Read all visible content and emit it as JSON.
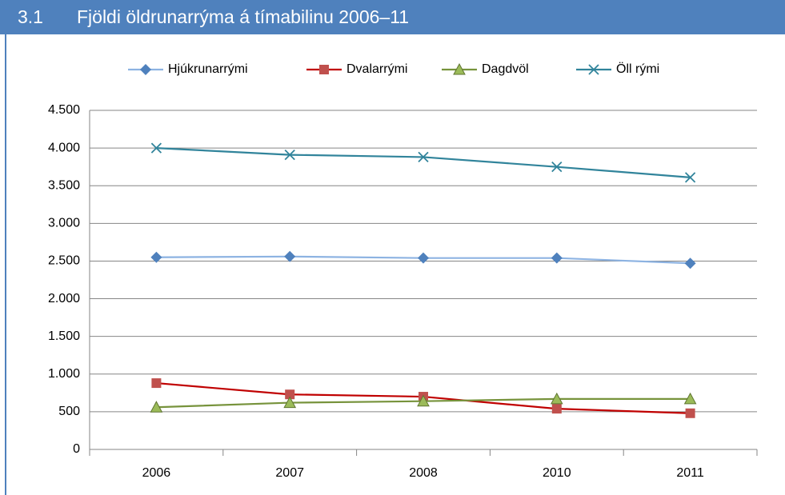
{
  "chart_data": {
    "type": "line",
    "number": "3.1",
    "title": "Fjöldi öldrunarrýma á tímabilinu 2006–11",
    "categories": [
      "2006",
      "2007",
      "2008",
      "2010",
      "2011"
    ],
    "series": [
      {
        "name": "Hjúkrunarrými",
        "color": "#4f81bd",
        "line_color": "#8db3e2",
        "marker": "diamond",
        "values": [
          2550,
          2560,
          2540,
          2540,
          2470
        ]
      },
      {
        "name": "Dvalarrými",
        "color": "#c0504d",
        "line_color": "#c00000",
        "marker": "square",
        "values": [
          880,
          730,
          700,
          540,
          480
        ]
      },
      {
        "name": "Dagdvöl",
        "color": "#9bbb59",
        "line_color": "#77933c",
        "marker": "triangle",
        "values": [
          560,
          620,
          640,
          670,
          670
        ]
      },
      {
        "name": "Öll rými",
        "color": "#31849b",
        "line_color": "#31849b",
        "marker": "x",
        "values": [
          4000,
          3910,
          3880,
          3750,
          3610
        ]
      }
    ],
    "ylim": [
      0,
      4500
    ],
    "yticks": [
      0,
      500,
      {
        "value": 1000,
        "label": "1.000"
      },
      {
        "value": 1500,
        "label": "1.500"
      },
      {
        "value": 2000,
        "label": "2.000"
      },
      {
        "value": 2500,
        "label": "2.500"
      },
      {
        "value": 3000,
        "label": "3.000"
      },
      {
        "value": 3500,
        "label": "3.500"
      },
      {
        "value": 4000,
        "label": "4.000"
      },
      {
        "value": 4500,
        "label": "4.500"
      }
    ],
    "grid": true,
    "legend": "top"
  }
}
